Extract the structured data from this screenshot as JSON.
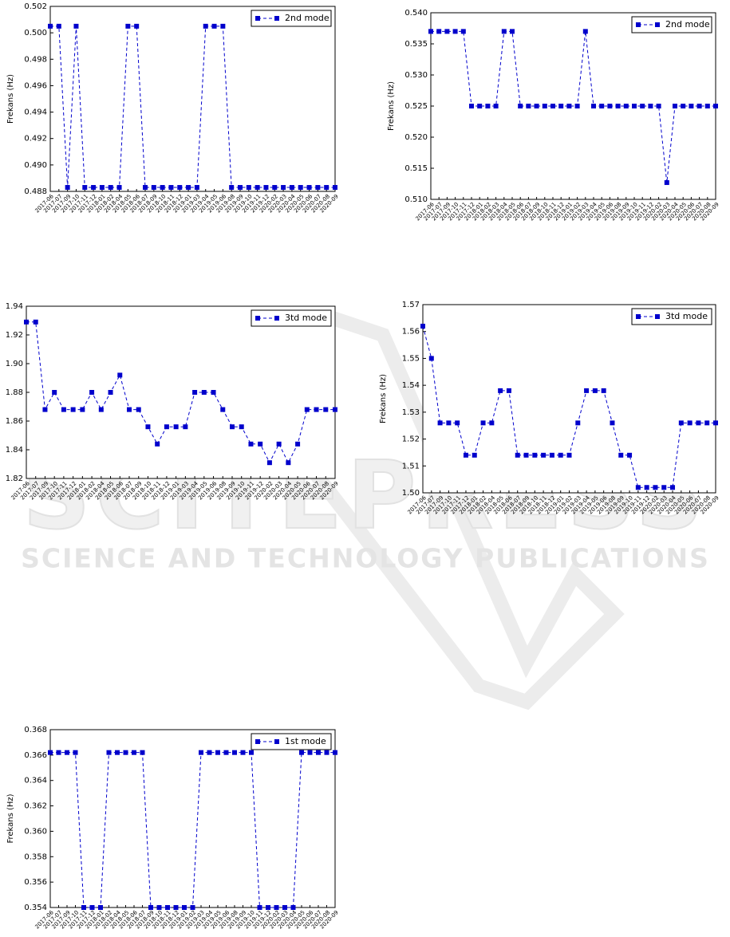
{
  "watermark": {
    "logo": "SCITEPRESS",
    "tagline": "SCIENCE AND TECHNOLOGY PUBLICATIONS"
  },
  "chart_data": [
    {
      "type": "line",
      "ylabel": "Frekans (Hz)",
      "legend": "upper right",
      "categories": [
        "2017-06",
        "2017-07",
        "2017-09",
        "2017-10",
        "2017-11",
        "2017-12",
        "2018-01",
        "2018-02",
        "2018-04",
        "2018-05",
        "2018-06",
        "2018-07",
        "2018-09",
        "2018-10",
        "2018-11",
        "2018-12",
        "2019-01",
        "2019-03",
        "2019-04",
        "2019-05",
        "2019-06",
        "2019-08",
        "2019-09",
        "2019-10",
        "2019-11",
        "2019-12",
        "2020-02",
        "2020-03",
        "2020-04",
        "2020-05",
        "2020-06",
        "2020-07",
        "2020-08",
        "2020-09"
      ],
      "series": [
        {
          "name": "2nd mode",
          "color": "#0000cc",
          "values": [
            0.5005,
            0.5005,
            0.4883,
            0.5005,
            0.4883,
            0.4883,
            0.4883,
            0.4883,
            0.4883,
            0.5005,
            0.5005,
            0.4883,
            0.4883,
            0.4883,
            0.4883,
            0.4883,
            0.4883,
            0.4883,
            0.5005,
            0.5005,
            0.5005,
            0.4883,
            0.4883,
            0.4883,
            0.4883,
            0.4883,
            0.4883,
            0.4883,
            0.4883,
            0.4883,
            0.4883,
            0.4883,
            0.4883,
            0.4883
          ]
        }
      ],
      "ylim": [
        0.488,
        0.502
      ],
      "yticks": [
        0.488,
        {
          "value": 0.49,
          "label": "0.490"
        },
        0.492,
        0.494,
        0.496,
        0.498,
        {
          "value": 0.5,
          "label": "0.500"
        },
        0.502
      ]
    },
    {
      "type": "line",
      "ylabel": "Frekans (Hz)",
      "legend": "upper right",
      "categories": [
        "2017-06",
        "2017-07",
        "2017-09",
        "2017-10",
        "2017-11",
        "2017-12",
        "2018-01",
        "2018-02",
        "2018-03",
        "2018-04",
        "2018-05",
        "2018-06",
        "2018-07",
        "2018-09",
        "2018-10",
        "2018-11",
        "2018-12",
        "2019-01",
        "2019-02",
        "2019-03",
        "2019-04",
        "2019-05",
        "2019-06",
        "2019-08",
        "2019-09",
        "2019-10",
        "2019-11",
        "2019-12",
        "2020-02",
        "2020-03",
        "2020-04",
        "2020-05",
        "2020-06",
        "2020-07",
        "2020-08",
        "2020-09"
      ],
      "series": [
        {
          "name": "2nd mode",
          "color": "#0000cc",
          "values": [
            0.537,
            0.537,
            0.537,
            0.537,
            0.537,
            0.525,
            0.525,
            0.525,
            0.525,
            0.537,
            0.537,
            0.525,
            0.525,
            0.525,
            0.525,
            0.525,
            0.525,
            0.525,
            0.525,
            0.537,
            0.525,
            0.525,
            0.525,
            0.525,
            0.525,
            0.525,
            0.525,
            0.525,
            0.525,
            0.5127,
            0.525,
            0.525,
            0.525,
            0.525,
            0.525,
            0.525
          ]
        }
      ],
      "ylim": [
        0.51,
        0.54
      ],
      "yticks": [
        {
          "value": 0.51,
          "label": "0.510"
        },
        0.515,
        {
          "value": 0.52,
          "label": "0.520"
        },
        0.525,
        {
          "value": 0.53,
          "label": "0.530"
        },
        0.535,
        {
          "value": 0.54,
          "label": "0.540"
        }
      ]
    },
    {
      "type": "line",
      "ylabel": "Frekans (Hz)",
      "legend": "upper right",
      "categories": [
        "2017-06",
        "2017-07",
        "2017-09",
        "2017-10",
        "2017-11",
        "2017-12",
        "2018-01",
        "2018-02",
        "2018-04",
        "2018-05",
        "2018-06",
        "2018-07",
        "2018-09",
        "2018-10",
        "2018-11",
        "2018-12",
        "2019-01",
        "2019-03",
        "2019-04",
        "2019-05",
        "2019-06",
        "2019-08",
        "2019-09",
        "2019-10",
        "2019-11",
        "2019-12",
        "2020-02",
        "2020-03",
        "2020-04",
        "2020-05",
        "2020-06",
        "2020-07",
        "2020-08",
        "2020-09"
      ],
      "series": [
        {
          "name": "3td mode",
          "color": "#0000cc",
          "values": [
            1.929,
            1.929,
            1.868,
            1.88,
            1.868,
            1.868,
            1.868,
            1.88,
            1.868,
            1.88,
            1.892,
            1.868,
            1.868,
            1.856,
            1.844,
            1.856,
            1.856,
            1.856,
            1.88,
            1.88,
            1.88,
            1.868,
            1.856,
            1.856,
            1.844,
            1.844,
            1.831,
            1.844,
            1.831,
            1.844,
            1.868,
            1.868,
            1.868,
            1.868
          ]
        }
      ],
      "ylim": [
        1.82,
        1.94
      ],
      "yticks": [
        1.82,
        1.84,
        1.86,
        1.88,
        {
          "value": 1.9,
          "label": "1.90"
        },
        1.92,
        1.94
      ]
    },
    {
      "type": "line",
      "ylabel": "Frekans (Hz)",
      "legend": "upper right",
      "categories": [
        "2017-06",
        "2017-07",
        "2017-09",
        "2017-10",
        "2017-11",
        "2017-12",
        "2018-01",
        "2018-02",
        "2018-04",
        "2018-05",
        "2018-06",
        "2018-07",
        "2018-09",
        "2018-10",
        "2018-11",
        "2018-12",
        "2019-01",
        "2019-02",
        "2019-03",
        "2019-04",
        "2019-05",
        "2019-06",
        "2019-08",
        "2019-09",
        "2019-10",
        "2019-11",
        "2019-12",
        "2020-02",
        "2020-03",
        "2020-04",
        "2020-05",
        "2020-06",
        "2020-07",
        "2020-08",
        "2020-09"
      ],
      "series": [
        {
          "name": "3td mode",
          "color": "#0000cc",
          "values": [
            1.562,
            1.55,
            1.526,
            1.526,
            1.526,
            1.514,
            1.514,
            1.526,
            1.526,
            1.538,
            1.538,
            1.514,
            1.514,
            1.514,
            1.514,
            1.514,
            1.514,
            1.514,
            1.526,
            1.538,
            1.538,
            1.538,
            1.526,
            1.514,
            1.514,
            1.502,
            1.502,
            1.502,
            1.502,
            1.502,
            1.526,
            1.526,
            1.526,
            1.526,
            1.526
          ]
        }
      ],
      "ylim": [
        1.5,
        1.57
      ],
      "yticks": [
        {
          "value": 1.5,
          "label": "1.50"
        },
        1.51,
        1.52,
        1.53,
        1.54,
        1.55,
        1.56,
        1.57
      ]
    },
    {
      "type": "line",
      "ylabel": "Frekans (Hz)",
      "legend": "upper right",
      "categories": [
        "2017-06",
        "2017-07",
        "2017-09",
        "2017-10",
        "2017-11",
        "2017-12",
        "2018-01",
        "2018-02",
        "2018-04",
        "2018-05",
        "2018-06",
        "2018-07",
        "2018-09",
        "2018-10",
        "2018-11",
        "2018-12",
        "2019-01",
        "2019-02",
        "2019-03",
        "2019-04",
        "2019-05",
        "2019-06",
        "2019-08",
        "2019-09",
        "2019-10",
        "2019-11",
        "2019-12",
        "2020-02",
        "2020-03",
        "2020-04",
        "2020-05",
        "2020-06",
        "2020-07",
        "2020-08",
        "2020-09"
      ],
      "series": [
        {
          "name": "1st mode",
          "color": "#0000cc",
          "values": [
            0.3662,
            0.3662,
            0.3662,
            0.3662,
            0.354,
            0.354,
            0.354,
            0.3662,
            0.3662,
            0.3662,
            0.3662,
            0.3662,
            0.354,
            0.354,
            0.354,
            0.354,
            0.354,
            0.354,
            0.3662,
            0.3662,
            0.3662,
            0.3662,
            0.3662,
            0.3662,
            0.3662,
            0.354,
            0.354,
            0.354,
            0.354,
            0.354,
            0.3662,
            0.3662,
            0.3662,
            0.3662,
            0.3662
          ]
        }
      ],
      "ylim": [
        0.354,
        0.368
      ],
      "yticks": [
        0.354,
        0.356,
        0.358,
        {
          "value": 0.36,
          "label": "0.360"
        },
        0.362,
        0.364,
        0.366,
        0.368
      ]
    }
  ]
}
